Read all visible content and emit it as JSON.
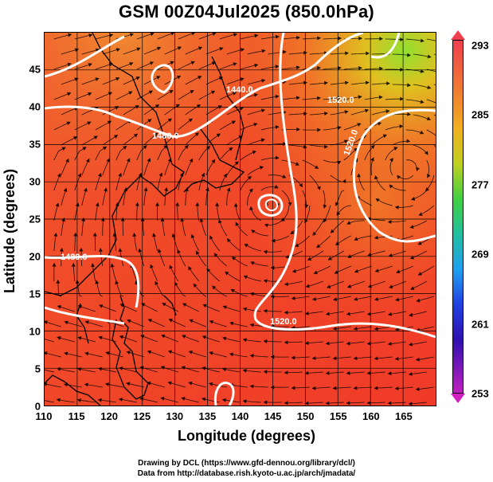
{
  "title": "GSM 00Z04Jul2025 (850.0hPa)",
  "axes": {
    "xlabel": "Longitude (degrees)",
    "ylabel": "Latitude  (degrees)",
    "x_ticks": [
      "110",
      "115",
      "120",
      "125",
      "130",
      "135",
      "140",
      "145",
      "150",
      "155",
      "160",
      "165"
    ],
    "y_ticks": [
      "0",
      "5",
      "10",
      "15",
      "20",
      "25",
      "30",
      "35",
      "40",
      "45"
    ]
  },
  "contours": {
    "labels": [
      "1440.0",
      "1480.0",
      "1520.0",
      "1520.0",
      "1480.0",
      "1520.0"
    ]
  },
  "colorbar": {
    "labels": [
      "293",
      "285",
      "277",
      "269",
      "261",
      "253"
    ]
  },
  "credits": {
    "line1": "Drawing by DCL (https://www.gfd-dennou.org/library/dcl/)",
    "line2": "Data from http://database.rish.kyoto-u.ac.jp/arch/jmadata/"
  },
  "chart_data": {
    "type": "map",
    "projection": "equirectangular",
    "xlim": [
      110,
      170
    ],
    "ylim": [
      0,
      50
    ],
    "field_shaded": "temperature (K)",
    "color_range": [
      253,
      293
    ],
    "field_contoured": "geopotential height (m)",
    "contour_levels": [
      1440,
      1480,
      1520
    ],
    "overlay": "wind streamlines",
    "high_center": {
      "lon": 145,
      "lat": 29.5
    }
  }
}
